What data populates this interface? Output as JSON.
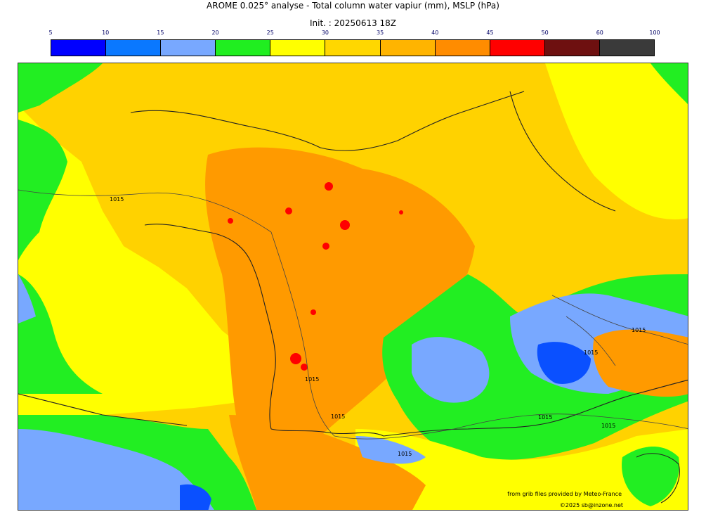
{
  "title": "AROME 0.025° analyse - Total column water vapiur (mm), MSLP (hPa)",
  "subtitle": "Init. : 20250613 18Z",
  "colorbar": {
    "ticks": [
      "5",
      "10",
      "15",
      "20",
      "25",
      "30",
      "35",
      "40",
      "45",
      "50",
      "60",
      "100"
    ],
    "colors": [
      "#0000ff",
      "#0a78ff",
      "#78a8ff",
      "#20ee20",
      "#ffff00",
      "#ffd700",
      "#ffb400",
      "#ff8c00",
      "#ff0000",
      "#6e1010",
      "#3a3a3a"
    ]
  },
  "map": {
    "legend_palette": {
      "land_base": "#ffd200",
      "moist_core": "#ff9a00",
      "very_moist": "#ff0000",
      "dry_mid": "#ffff00",
      "dry": "#22ee22",
      "very_dry": "#78a8ff",
      "driest": "#0a50ff"
    },
    "isobar_labels": [
      "1015",
      "1015",
      "1015",
      "1015",
      "1015",
      "1015",
      "1015",
      "1015"
    ]
  },
  "credits": {
    "source": "from grib files provided by Meteo-France",
    "copyright": "©2025 sb@inzone.net"
  }
}
